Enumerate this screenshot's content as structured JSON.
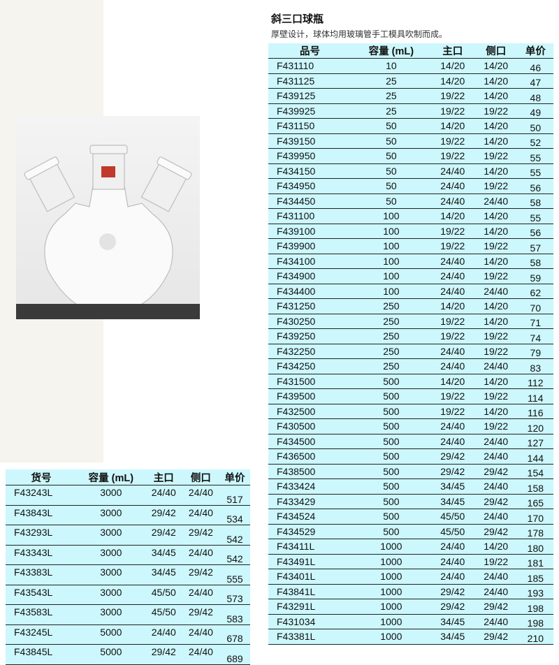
{
  "title": "斜三口球瓶",
  "subtitle": "厚壁设计，球体均用玻璃管手工模具吹制而成。",
  "colors": {
    "table_bg": "#ccf7fc",
    "highlight": "#f0e68c",
    "page_left_bg": "#f6f4ee"
  },
  "right_table": {
    "headers": [
      "品号",
      "容量 (mL)",
      "主口",
      "侧口",
      "单价"
    ],
    "highlighted_row": 19,
    "rows": [
      [
        "F431110",
        "10",
        "14/20",
        "14/20",
        "46"
      ],
      [
        "F431125",
        "25",
        "14/20",
        "14/20",
        "47"
      ],
      [
        "F439125",
        "25",
        "19/22",
        "14/20",
        "48"
      ],
      [
        "F439925",
        "25",
        "19/22",
        "19/22",
        "49"
      ],
      [
        "F431150",
        "50",
        "14/20",
        "14/20",
        "50"
      ],
      [
        "F439150",
        "50",
        "19/22",
        "14/20",
        "52"
      ],
      [
        "F439950",
        "50",
        "19/22",
        "19/22",
        "55"
      ],
      [
        "F434150",
        "50",
        "24/40",
        "14/20",
        "55"
      ],
      [
        "F434950",
        "50",
        "24/40",
        "19/22",
        "56"
      ],
      [
        "F434450",
        "50",
        "24/40",
        "24/40",
        "58"
      ],
      [
        "F431100",
        "100",
        "14/20",
        "14/20",
        "55"
      ],
      [
        "F439100",
        "100",
        "19/22",
        "14/20",
        "56"
      ],
      [
        "F439900",
        "100",
        "19/22",
        "19/22",
        "57"
      ],
      [
        "F434100",
        "100",
        "24/40",
        "14/20",
        "58"
      ],
      [
        "F434900",
        "100",
        "24/40",
        "19/22",
        "59"
      ],
      [
        "F434400",
        "100",
        "24/40",
        "24/40",
        "62"
      ],
      [
        "F431250",
        "250",
        "14/20",
        "14/20",
        "70"
      ],
      [
        "F430250",
        "250",
        "19/22",
        "14/20",
        "71"
      ],
      [
        "F439250",
        "250",
        "19/22",
        "19/22",
        "74"
      ],
      [
        "F432250",
        "250",
        "24/40",
        "19/22",
        "79"
      ],
      [
        "F434250",
        "250",
        "24/40",
        "24/40",
        "83"
      ],
      [
        "F431500",
        "500",
        "14/20",
        "14/20",
        "112"
      ],
      [
        "F439500",
        "500",
        "19/22",
        "19/22",
        "114"
      ],
      [
        "F432500",
        "500",
        "19/22",
        "14/20",
        "116"
      ],
      [
        "F430500",
        "500",
        "24/40",
        "19/22",
        "120"
      ],
      [
        "F434500",
        "500",
        "24/40",
        "24/40",
        "127"
      ],
      [
        "F436500",
        "500",
        "29/42",
        "24/40",
        "144"
      ],
      [
        "F438500",
        "500",
        "29/42",
        "29/42",
        "154"
      ],
      [
        "F433424",
        "500",
        "34/45",
        "24/40",
        "158"
      ],
      [
        "F433429",
        "500",
        "34/45",
        "29/42",
        "165"
      ],
      [
        "F434524",
        "500",
        "45/50",
        "24/40",
        "170"
      ],
      [
        "F434529",
        "500",
        "45/50",
        "29/42",
        "178"
      ],
      [
        "F43411L",
        "1000",
        "24/40",
        "14/20",
        "180"
      ],
      [
        "F43491L",
        "1000",
        "24/40",
        "19/22",
        "181"
      ],
      [
        "F43401L",
        "1000",
        "24/40",
        "24/40",
        "185"
      ],
      [
        "F43841L",
        "1000",
        "29/42",
        "24/40",
        "193"
      ],
      [
        "F43291L",
        "1000",
        "29/42",
        "29/42",
        "198"
      ],
      [
        "F431034",
        "1000",
        "34/45",
        "24/40",
        "198"
      ],
      [
        "F43381L",
        "1000",
        "34/45",
        "29/42",
        "210"
      ]
    ]
  },
  "left_table": {
    "headers": [
      "货号",
      "容量 (mL)",
      "主口",
      "侧口",
      "单价"
    ],
    "rows": [
      [
        "F43243L",
        "3000",
        "24/40",
        "24/40",
        "517"
      ],
      [
        "F43843L",
        "3000",
        "29/42",
        "24/40",
        "534"
      ],
      [
        "F43293L",
        "3000",
        "29/42",
        "29/42",
        "542"
      ],
      [
        "F43343L",
        "3000",
        "34/45",
        "24/40",
        "542"
      ],
      [
        "F43383L",
        "3000",
        "34/45",
        "29/42",
        "555"
      ],
      [
        "F43543L",
        "3000",
        "45/50",
        "24/40",
        "573"
      ],
      [
        "F43583L",
        "3000",
        "45/50",
        "29/42",
        "583"
      ],
      [
        "F43245L",
        "5000",
        "24/40",
        "24/40",
        "678"
      ],
      [
        "F43845L",
        "5000",
        "29/42",
        "24/40",
        "689"
      ]
    ]
  }
}
